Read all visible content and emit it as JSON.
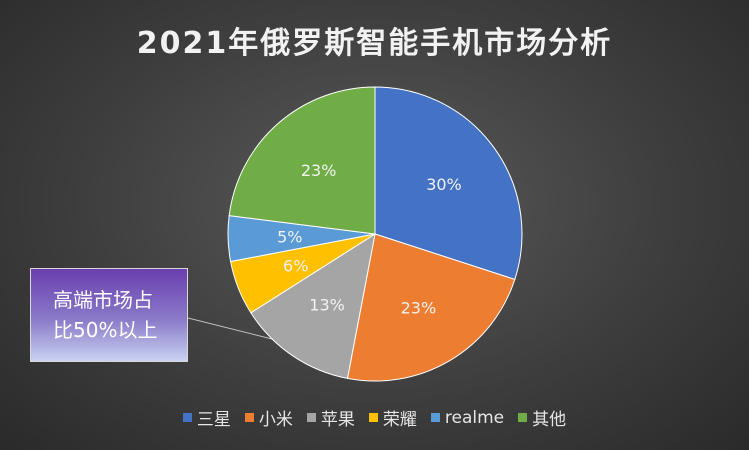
{
  "chart_data": {
    "type": "pie",
    "title": "2021年俄罗斯智能手机市场分析",
    "categories": [
      "三星",
      "小米",
      "苹果",
      "荣耀",
      "realme",
      "其他"
    ],
    "values": [
      30,
      23,
      13,
      6,
      5,
      23
    ],
    "labels": [
      "30%",
      "23%",
      "13%",
      "6%",
      "5%",
      "23%"
    ],
    "colors": [
      "#4472c4",
      "#ed7d31",
      "#a5a5a5",
      "#ffc000",
      "#5b9bd5",
      "#70ad47"
    ],
    "legend_position": "bottom",
    "annotation": {
      "line1": "高端市场占",
      "line2": "比50%以上"
    }
  }
}
